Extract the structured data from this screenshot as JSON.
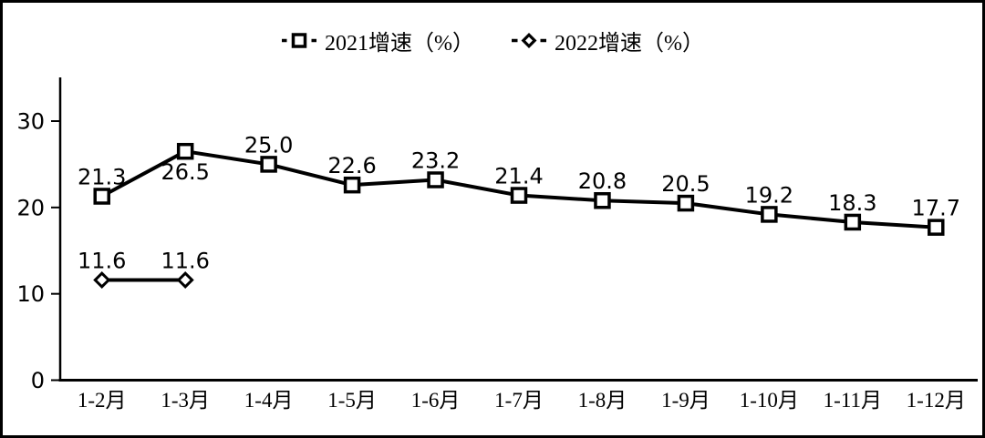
{
  "figure": {
    "background": "#ffffff",
    "border_color": "#000000",
    "text_color": "#000000"
  },
  "chart_data": {
    "type": "line",
    "title": "",
    "xlabel": "",
    "ylabel": "",
    "categories": [
      "1-2月",
      "1-3月",
      "1-4月",
      "1-5月",
      "1-6月",
      "1-7月",
      "1-8月",
      "1-9月",
      "1-10月",
      "1-11月",
      "1-12月"
    ],
    "series": [
      {
        "name": "2021增速（%）",
        "marker": "square",
        "values": [
          21.3,
          26.5,
          25.0,
          22.6,
          23.2,
          21.4,
          20.8,
          20.5,
          19.2,
          18.3,
          17.7
        ],
        "labels": [
          "21.3",
          "26.5",
          "25.0",
          "22.6",
          "23.2",
          "21.4",
          "20.8",
          "20.5",
          "19.2",
          "18.3",
          "17.7"
        ],
        "label_below_indices": [
          1
        ],
        "color": "#000000"
      },
      {
        "name": "2022增速（%）",
        "marker": "diamond",
        "values": [
          11.6,
          11.6
        ],
        "labels": [
          "11.6",
          "11.6"
        ],
        "label_below_indices": [],
        "color": "#000000"
      }
    ],
    "yticks": [
      0,
      10,
      20,
      30
    ],
    "ylim": [
      0,
      35
    ],
    "grid": false,
    "legend_position": "top-center",
    "line_color": "#000000",
    "background": "#ffffff"
  }
}
